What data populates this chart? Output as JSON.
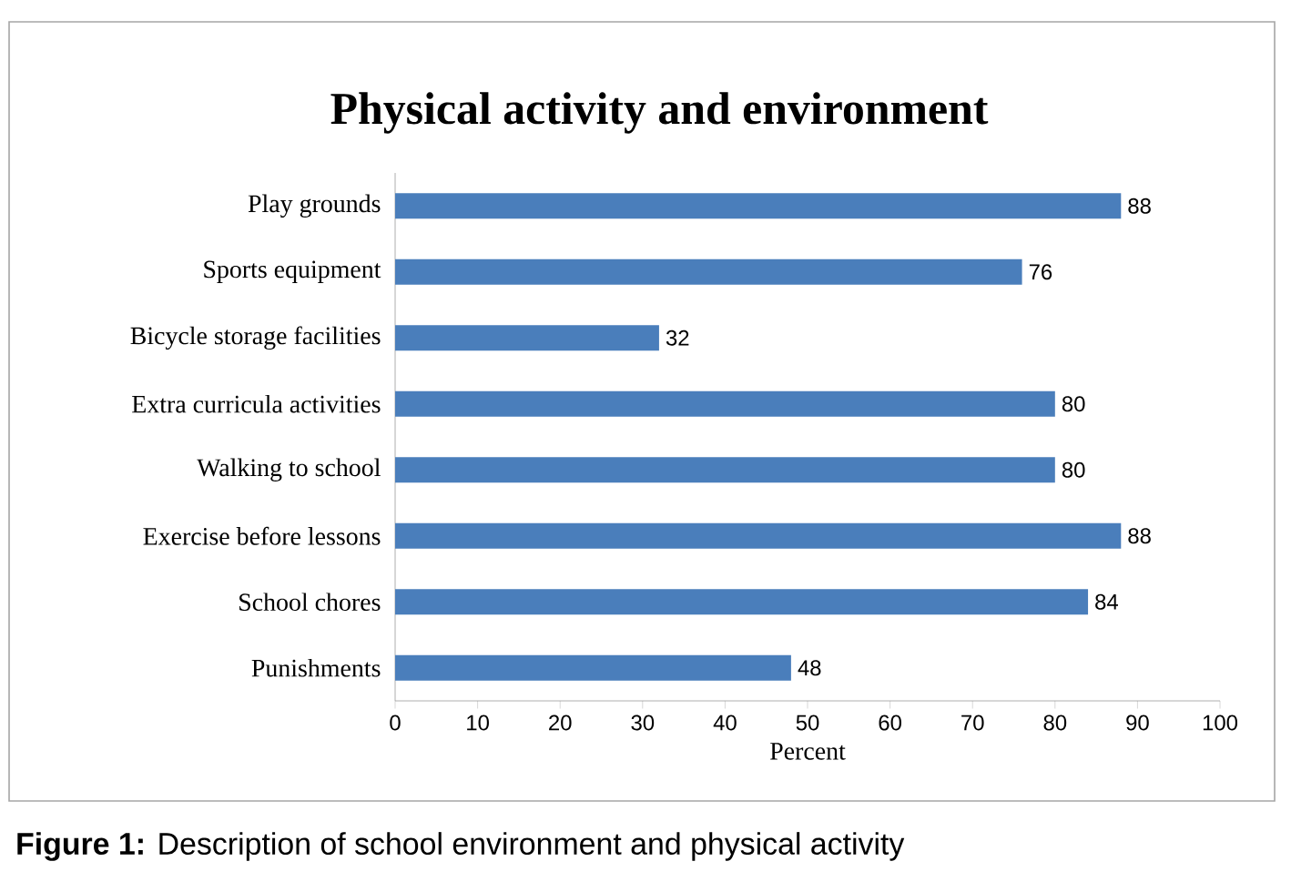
{
  "chart_data": {
    "type": "bar",
    "orientation": "horizontal",
    "title": "Physical activity and environment",
    "xlabel": "Percent",
    "categories": [
      "Play grounds",
      "Sports equipment",
      "Bicycle storage facilities",
      "Extra curricula activities",
      "Walking to school",
      "Exercise before lessons",
      "School chores",
      "Punishments"
    ],
    "values": [
      88,
      76,
      32,
      80,
      80,
      88,
      84,
      48
    ],
    "color": "#4a7ebb",
    "data_labels": true,
    "grid": false,
    "xlim": [
      0,
      100
    ],
    "xticks": [
      0,
      10,
      20,
      30,
      40,
      50,
      60,
      70,
      80,
      90,
      100
    ],
    "annotations": [
      "**Figure 1:** Description of school environment and physical activity"
    ]
  }
}
